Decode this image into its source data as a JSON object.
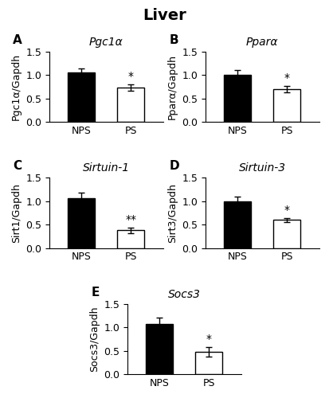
{
  "title": "Liver",
  "chart_data": [
    {
      "type": "bar",
      "panel_label": "A",
      "title": "Pgc1α",
      "ylabel": "Pgc1α/Gapdh",
      "categories": [
        "NPS",
        "PS"
      ],
      "values": [
        1.05,
        0.73
      ],
      "errors": [
        0.1,
        0.07
      ],
      "colors": [
        "#000000",
        "#ffffff"
      ],
      "annotations": [
        {
          "category": "PS",
          "text": "*"
        }
      ],
      "ylim": [
        0,
        1.5
      ],
      "yticks": [
        0.0,
        0.5,
        1.0,
        1.5
      ],
      "grid": false
    },
    {
      "type": "bar",
      "panel_label": "B",
      "title": "Pparα",
      "ylabel": "Pparα/Gapdh",
      "categories": [
        "NPS",
        "PS"
      ],
      "values": [
        1.0,
        0.7
      ],
      "errors": [
        0.1,
        0.07
      ],
      "colors": [
        "#000000",
        "#ffffff"
      ],
      "annotations": [
        {
          "category": "PS",
          "text": "*"
        }
      ],
      "ylim": [
        0,
        1.5
      ],
      "yticks": [
        0.0,
        0.5,
        1.0,
        1.5
      ],
      "grid": false
    },
    {
      "type": "bar",
      "panel_label": "C",
      "title": "Sirtuin-1",
      "ylabel": "Sirt1/Gapdh",
      "categories": [
        "NPS",
        "PS"
      ],
      "values": [
        1.07,
        0.38
      ],
      "errors": [
        0.12,
        0.06
      ],
      "colors": [
        "#000000",
        "#ffffff"
      ],
      "annotations": [
        {
          "category": "PS",
          "text": "**"
        }
      ],
      "ylim": [
        0,
        1.5
      ],
      "yticks": [
        0.0,
        0.5,
        1.0,
        1.5
      ],
      "grid": false
    },
    {
      "type": "bar",
      "panel_label": "D",
      "title": "Sirtuin-3",
      "ylabel": "Sirt3/Gapdh",
      "categories": [
        "NPS",
        "PS"
      ],
      "values": [
        1.0,
        0.6
      ],
      "errors": [
        0.1,
        0.04
      ],
      "colors": [
        "#000000",
        "#ffffff"
      ],
      "annotations": [
        {
          "category": "PS",
          "text": "*"
        }
      ],
      "ylim": [
        0,
        1.5
      ],
      "yticks": [
        0.0,
        0.5,
        1.0,
        1.5
      ],
      "grid": false
    },
    {
      "type": "bar",
      "panel_label": "E",
      "title": "Socs3",
      "ylabel": "Socs3/Gapdh",
      "categories": [
        "NPS",
        "PS"
      ],
      "values": [
        1.08,
        0.48
      ],
      "errors": [
        0.13,
        0.1
      ],
      "colors": [
        "#000000",
        "#ffffff"
      ],
      "annotations": [
        {
          "category": "PS",
          "text": "*"
        }
      ],
      "ylim": [
        0,
        1.5
      ],
      "yticks": [
        0.0,
        0.5,
        1.0,
        1.5
      ],
      "grid": false
    }
  ]
}
